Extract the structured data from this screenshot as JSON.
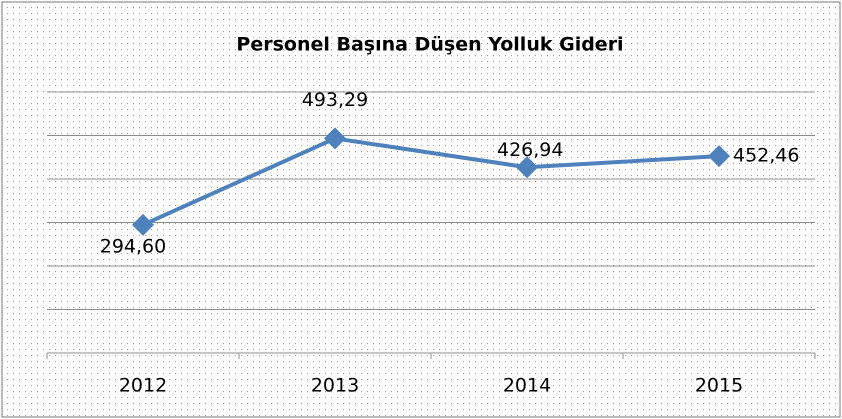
{
  "chart_data": {
    "type": "line",
    "title": "Personel Başına Düşen Yolluk Gideri",
    "categories": [
      "2012",
      "2013",
      "2014",
      "2015"
    ],
    "series": [
      {
        "name": "Personel Başına Düşen Yolluk Gideri",
        "color": "#4f81bd",
        "values": [
          294.6,
          493.29,
          426.94,
          452.46
        ],
        "value_labels": [
          "294,60",
          "493,29",
          "426,94",
          "452,46"
        ]
      }
    ],
    "ylim": [
      0,
      600
    ],
    "yticks": [
      0,
      100,
      200,
      300,
      400,
      500,
      600
    ],
    "grid": true
  }
}
